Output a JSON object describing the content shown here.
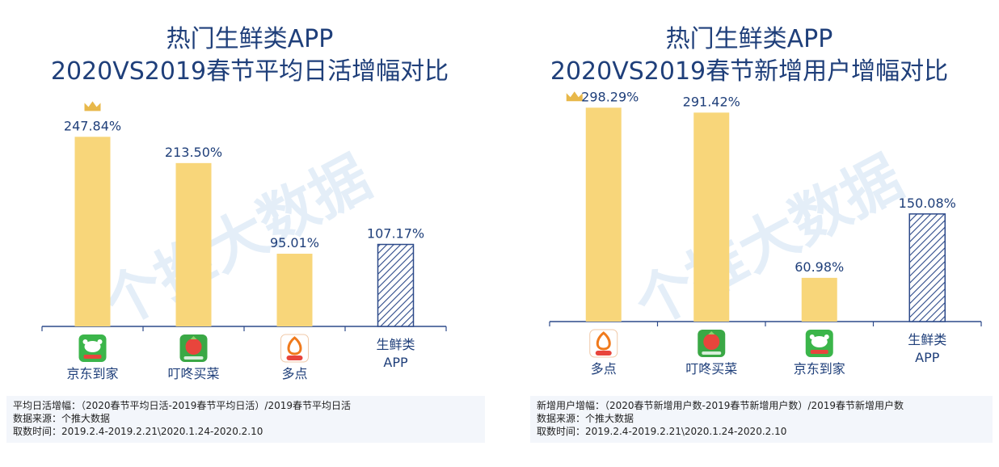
{
  "colors": {
    "title": "#1f3f7a",
    "bar": "#f8d67a",
    "hatch": "#2d4a8a",
    "axis": "#2d4a8a",
    "crown": "#e8b84a",
    "note_bg": "#f3f6fb"
  },
  "icons": {
    "jd": "jd-daojia-app-icon",
    "dingdong": "dingdong-maicai-app-icon",
    "duodian": "duodian-app-icon",
    "crown": "crown-icon"
  },
  "watermark": "个推大数据",
  "chart_data": [
    {
      "type": "bar",
      "title": "热门生鲜类APP",
      "subtitle": "2020VS2019春节平均日活增幅对比",
      "categories": [
        "京东到家",
        "叮咚买菜",
        "多点",
        "生鲜类\nAPP"
      ],
      "category_icons": [
        "jd-daojia-app-icon",
        "dingdong-maicai-app-icon",
        "duodian-app-icon",
        ""
      ],
      "values": [
        247.84,
        213.5,
        95.01,
        107.17
      ],
      "value_labels": [
        "247.84%",
        "213.50%",
        "95.01%",
        "107.17%"
      ],
      "hatched": [
        false,
        false,
        false,
        true
      ],
      "crown_index": 0,
      "ylim": [
        0,
        320
      ],
      "xlabel": "",
      "ylabel": "",
      "grid": false,
      "notes": [
        "平均日活增幅：（2020春节平均日活-2019春节平均日活）/2019春节平均日活",
        "数据来源：个推大数据",
        "取数时间：2019.2.4-2019.2.21\\2020.1.24-2020.2.10"
      ]
    },
    {
      "type": "bar",
      "title": "热门生鲜类APP",
      "subtitle": "2020VS2019春节新增用户增幅对比",
      "categories": [
        "多点",
        "叮咚买菜",
        "京东到家",
        "生鲜类\nAPP"
      ],
      "category_icons": [
        "duodian-app-icon",
        "dingdong-maicai-app-icon",
        "jd-daojia-app-icon",
        ""
      ],
      "values": [
        298.29,
        291.42,
        60.98,
        150.08
      ],
      "value_labels": [
        "298.29%",
        "291.42%",
        "60.98%",
        "150.08%"
      ],
      "hatched": [
        false,
        false,
        false,
        true
      ],
      "crown_index": 0,
      "ylim": [
        0,
        320
      ],
      "xlabel": "",
      "ylabel": "",
      "grid": false,
      "notes": [
        "新增用户增幅：（2020春节新增用户数-2019春节新增用户数）/2019春节新增用户数",
        "数据来源：个推大数据",
        "取数时间：2019.2.4-2019.2.21\\2020.1.24-2020.2.10"
      ]
    }
  ]
}
